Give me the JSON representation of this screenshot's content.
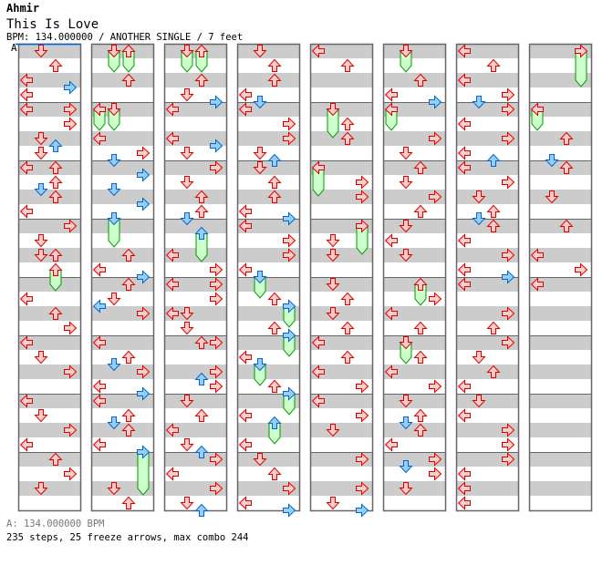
{
  "header": {
    "artist": "Ahmir",
    "title": "This Is Love",
    "meta": "BPM: 134.000000 / ANOTHER SINGLE / 7 feet"
  },
  "section_label": "A",
  "footer": {
    "bpm_line": "A: 134.000000 BPM",
    "stats": "235 steps, 25 freeze arrows, max combo 244"
  },
  "colors": {
    "quarter_fill": "#ffcccc",
    "quarter_stroke": "#dd0000",
    "eighth_fill": "#99ccff",
    "eighth_stroke": "#0066cc",
    "freeze_fill": "#ccffcc",
    "freeze_stroke": "#009900",
    "stripe": "#cccccc",
    "border": "#666666",
    "bpm_marker": "#0066cc"
  },
  "chart_data": {
    "type": "step-chart",
    "beats_per_column": 32,
    "beats_per_measure": 4,
    "lanes": [
      "L",
      "D",
      "U",
      "R"
    ],
    "note_format": "[beat, lane, freeze_length_beats?]",
    "columns": [
      [
        [
          0,
          "D"
        ],
        [
          1,
          "U"
        ],
        [
          2,
          "L"
        ],
        [
          2.5,
          "R"
        ],
        [
          3,
          "L"
        ],
        [
          4,
          "L"
        ],
        [
          4,
          "R"
        ],
        [
          5,
          "R"
        ],
        [
          6,
          "D"
        ],
        [
          6.5,
          "U"
        ],
        [
          7,
          "D"
        ],
        [
          8,
          "L"
        ],
        [
          8,
          "U"
        ],
        [
          9,
          "U"
        ],
        [
          9.5,
          "D"
        ],
        [
          10,
          "U"
        ],
        [
          11,
          "L"
        ],
        [
          12,
          "R"
        ],
        [
          13,
          "D"
        ],
        [
          14,
          "D"
        ],
        [
          14,
          "U"
        ],
        [
          15,
          "U",
          1.5
        ],
        [
          17,
          "L"
        ],
        [
          18,
          "U"
        ],
        [
          19,
          "R"
        ],
        [
          20,
          "L"
        ],
        [
          21,
          "D"
        ],
        [
          22,
          "R"
        ],
        [
          24,
          "L"
        ],
        [
          25,
          "D"
        ],
        [
          26,
          "R"
        ],
        [
          27,
          "L"
        ],
        [
          28,
          "U"
        ],
        [
          29,
          "R"
        ],
        [
          30,
          "D"
        ]
      ],
      [
        [
          0,
          "D",
          1.5
        ],
        [
          0,
          "U",
          1.5
        ],
        [
          2,
          "U"
        ],
        [
          4,
          "L",
          1.5
        ],
        [
          4,
          "D",
          1.5
        ],
        [
          6,
          "L"
        ],
        [
          7,
          "R"
        ],
        [
          7.5,
          "D"
        ],
        [
          8.5,
          "R"
        ],
        [
          9.5,
          "D"
        ],
        [
          10.5,
          "R"
        ],
        [
          11.5,
          "D",
          2
        ],
        [
          14,
          "U"
        ],
        [
          15,
          "L"
        ],
        [
          15.5,
          "R"
        ],
        [
          16,
          "U"
        ],
        [
          17,
          "D"
        ],
        [
          17.5,
          "L"
        ],
        [
          18,
          "R"
        ],
        [
          20,
          "L"
        ],
        [
          21,
          "U"
        ],
        [
          21.5,
          "D"
        ],
        [
          22,
          "R"
        ],
        [
          23,
          "L"
        ],
        [
          23.5,
          "R"
        ],
        [
          24,
          "L"
        ],
        [
          25,
          "U"
        ],
        [
          25.5,
          "D"
        ],
        [
          26,
          "U"
        ],
        [
          27,
          "L"
        ],
        [
          27.5,
          "R",
          3
        ],
        [
          30,
          "D"
        ],
        [
          31,
          "U"
        ]
      ],
      [
        [
          0,
          "D",
          1.5
        ],
        [
          0,
          "U",
          1.5
        ],
        [
          2,
          "U"
        ],
        [
          3,
          "D"
        ],
        [
          3.5,
          "R"
        ],
        [
          4,
          "L"
        ],
        [
          6,
          "L"
        ],
        [
          6.5,
          "R"
        ],
        [
          7,
          "D"
        ],
        [
          8,
          "R"
        ],
        [
          9,
          "D"
        ],
        [
          10,
          "U"
        ],
        [
          11,
          "U"
        ],
        [
          11.5,
          "D"
        ],
        [
          12.5,
          "U",
          2
        ],
        [
          14,
          "L"
        ],
        [
          15,
          "R"
        ],
        [
          16,
          "L"
        ],
        [
          16,
          "R"
        ],
        [
          17,
          "R"
        ],
        [
          18,
          "L"
        ],
        [
          18,
          "D"
        ],
        [
          19,
          "D"
        ],
        [
          20,
          "U"
        ],
        [
          20,
          "R"
        ],
        [
          22,
          "R"
        ],
        [
          22.5,
          "U"
        ],
        [
          23,
          "R"
        ],
        [
          24,
          "D"
        ],
        [
          25,
          "U"
        ],
        [
          26,
          "L"
        ],
        [
          27,
          "D"
        ],
        [
          27.5,
          "U"
        ],
        [
          28,
          "R"
        ],
        [
          29,
          "L"
        ],
        [
          30,
          "R"
        ],
        [
          31,
          "D"
        ],
        [
          31.5,
          "U"
        ]
      ],
      [
        [
          0,
          "D"
        ],
        [
          1,
          "U"
        ],
        [
          2,
          "U"
        ],
        [
          3,
          "L"
        ],
        [
          3.5,
          "D"
        ],
        [
          4,
          "L"
        ],
        [
          5,
          "R"
        ],
        [
          6,
          "R"
        ],
        [
          7,
          "D"
        ],
        [
          7.5,
          "U"
        ],
        [
          8,
          "D"
        ],
        [
          9,
          "U"
        ],
        [
          10,
          "U"
        ],
        [
          11,
          "L"
        ],
        [
          11.5,
          "R"
        ],
        [
          12,
          "L"
        ],
        [
          13,
          "R"
        ],
        [
          14,
          "R"
        ],
        [
          15,
          "L"
        ],
        [
          15.5,
          "D",
          1.5
        ],
        [
          17,
          "U"
        ],
        [
          17.5,
          "R",
          1.5
        ],
        [
          19,
          "U"
        ],
        [
          19.5,
          "R",
          1.5
        ],
        [
          21,
          "L"
        ],
        [
          21.5,
          "D",
          1.5
        ],
        [
          23,
          "U"
        ],
        [
          23.5,
          "R",
          1.5
        ],
        [
          25,
          "L"
        ],
        [
          25.5,
          "U",
          1.5
        ],
        [
          27,
          "L"
        ],
        [
          28,
          "D"
        ],
        [
          29,
          "U"
        ],
        [
          30,
          "R"
        ],
        [
          31,
          "L"
        ],
        [
          31.5,
          "R"
        ]
      ],
      [
        [
          0,
          "L"
        ],
        [
          1,
          "U"
        ],
        [
          4,
          "D",
          2
        ],
        [
          5,
          "U"
        ],
        [
          6,
          "U"
        ],
        [
          8,
          "L",
          2
        ],
        [
          9,
          "R"
        ],
        [
          10,
          "R"
        ],
        [
          12,
          "R",
          2
        ],
        [
          13,
          "D"
        ],
        [
          14,
          "D"
        ],
        [
          16,
          "D"
        ],
        [
          17,
          "U"
        ],
        [
          18,
          "D"
        ],
        [
          19,
          "U"
        ],
        [
          20,
          "L"
        ],
        [
          21,
          "U"
        ],
        [
          22,
          "L"
        ],
        [
          23,
          "R"
        ],
        [
          24,
          "L"
        ],
        [
          25,
          "R"
        ],
        [
          26,
          "D"
        ],
        [
          28,
          "R"
        ],
        [
          30,
          "R"
        ],
        [
          31,
          "D"
        ],
        [
          31.5,
          "R"
        ]
      ],
      [
        [
          0,
          "D",
          1.5
        ],
        [
          2,
          "U"
        ],
        [
          3,
          "L"
        ],
        [
          3.5,
          "R"
        ],
        [
          4,
          "L",
          1.5
        ],
        [
          6,
          "R"
        ],
        [
          7,
          "D"
        ],
        [
          8,
          "U"
        ],
        [
          9,
          "D"
        ],
        [
          10,
          "R"
        ],
        [
          11,
          "U"
        ],
        [
          12,
          "D"
        ],
        [
          13,
          "L"
        ],
        [
          14,
          "D"
        ],
        [
          16,
          "U",
          1.5
        ],
        [
          17,
          "R"
        ],
        [
          18,
          "L"
        ],
        [
          19,
          "U"
        ],
        [
          20,
          "D",
          1.5
        ],
        [
          21,
          "U"
        ],
        [
          22,
          "L"
        ],
        [
          23,
          "R"
        ],
        [
          24,
          "D"
        ],
        [
          25,
          "U"
        ],
        [
          25.5,
          "D"
        ],
        [
          26,
          "U"
        ],
        [
          27,
          "L"
        ],
        [
          28,
          "R"
        ],
        [
          28.5,
          "D"
        ],
        [
          29,
          "R"
        ],
        [
          30,
          "D"
        ]
      ],
      [
        [
          0,
          "L"
        ],
        [
          1,
          "U"
        ],
        [
          2,
          "L"
        ],
        [
          3,
          "R"
        ],
        [
          3.5,
          "D"
        ],
        [
          4,
          "R"
        ],
        [
          5,
          "L"
        ],
        [
          6,
          "R"
        ],
        [
          7,
          "L"
        ],
        [
          7.5,
          "U"
        ],
        [
          8,
          "L"
        ],
        [
          9,
          "R"
        ],
        [
          10,
          "D"
        ],
        [
          11,
          "U"
        ],
        [
          11.5,
          "D"
        ],
        [
          12,
          "U"
        ],
        [
          13,
          "L"
        ],
        [
          14,
          "R"
        ],
        [
          15,
          "L"
        ],
        [
          15.5,
          "R"
        ],
        [
          16,
          "L"
        ],
        [
          18,
          "R"
        ],
        [
          19,
          "U"
        ],
        [
          20,
          "R"
        ],
        [
          21,
          "D"
        ],
        [
          22,
          "U"
        ],
        [
          23,
          "L"
        ],
        [
          24,
          "D"
        ],
        [
          25,
          "L"
        ],
        [
          26,
          "R"
        ],
        [
          27,
          "R"
        ],
        [
          28,
          "R"
        ],
        [
          29,
          "L"
        ],
        [
          30,
          "L"
        ],
        [
          31,
          "L"
        ]
      ],
      [
        [
          0,
          "R",
          2.5
        ],
        [
          4,
          "L",
          1.5
        ],
        [
          6,
          "U"
        ],
        [
          7.5,
          "D"
        ],
        [
          8,
          "U"
        ],
        [
          10,
          "D"
        ],
        [
          12,
          "U"
        ],
        [
          14,
          "L"
        ],
        [
          15,
          "R"
        ],
        [
          16,
          "L"
        ]
      ]
    ]
  }
}
